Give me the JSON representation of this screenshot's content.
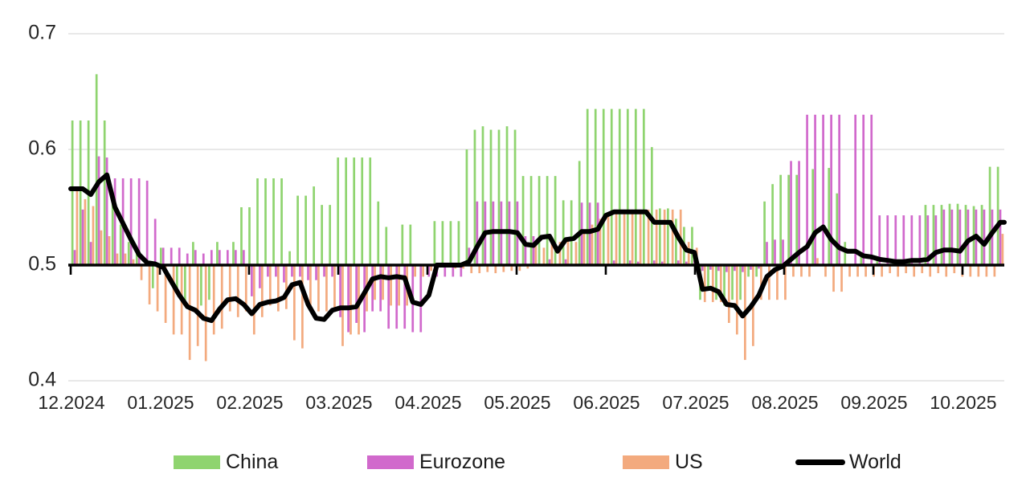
{
  "chart_data": {
    "type": "bar+line",
    "title": "",
    "y_axis": {
      "min": 0.4,
      "max": 0.7,
      "baseline": 0.5,
      "tick_labels": [
        "0.7",
        "0.6",
        "0.5",
        "0.4"
      ],
      "tick_values": [
        0.7,
        0.6,
        0.5,
        0.4
      ],
      "gridlines": [
        0.7,
        0.6,
        0.4
      ],
      "gridline_color": "#D9D9D9"
    },
    "x_axis": {
      "tick_labels": [
        "12.2024",
        "01.2025",
        "02.2025",
        "03.2025",
        "04.2025",
        "05.2025",
        "06.2025",
        "07.2025",
        "08.2025",
        "09.2025",
        "10.2025"
      ]
    },
    "legend": {
      "position": "bottom",
      "items": [
        "China",
        "Eurozone",
        "US",
        "World"
      ]
    },
    "series": [
      {
        "name": "China",
        "type": "bar",
        "color": "#8FD46F",
        "values": [
          0.625,
          0.625,
          0.625,
          0.665,
          0.625,
          0.553,
          0.535,
          0.52,
          0.515,
          null,
          0.48,
          0.515,
          null,
          0.475,
          0.465,
          0.52,
          0.465,
          0.47,
          0.52,
          null,
          0.52,
          0.55,
          0.55,
          0.575,
          0.575,
          0.575,
          0.575,
          0.512,
          0.56,
          0.56,
          0.568,
          0.552,
          0.552,
          0.593,
          0.593,
          0.593,
          0.593,
          0.593,
          0.555,
          0.533,
          null,
          0.535,
          0.535,
          null,
          null,
          0.538,
          0.538,
          0.538,
          0.538,
          0.6,
          0.617,
          0.62,
          0.617,
          0.617,
          0.62,
          0.617,
          0.577,
          0.577,
          0.577,
          0.577,
          0.577,
          0.556,
          0.556,
          0.59,
          0.635,
          0.635,
          0.635,
          0.635,
          0.635,
          0.635,
          0.635,
          0.635,
          0.602,
          0.549,
          0.549,
          0.54,
          0.533,
          0.533,
          0.47,
          0.48,
          0.47,
          0.465,
          0.47,
          0.47,
          0.49,
          0.49,
          0.555,
          0.57,
          0.578,
          0.578,
          0.578,
          null,
          0.583,
          null,
          0.584,
          0.562,
          0.52,
          null,
          0.51,
          null,
          0.505,
          null,
          0.505,
          null,
          0.505,
          null,
          0.552,
          0.552,
          0.552,
          0.553,
          0.553,
          0.552,
          0.551,
          0.552,
          0.585,
          0.585
        ]
      },
      {
        "name": "Eurozone",
        "type": "bar",
        "color": "#D169CC",
        "values": [
          0.513,
          0.548,
          0.52,
          0.594,
          0.593,
          0.575,
          0.575,
          0.575,
          0.575,
          0.573,
          0.54,
          0.515,
          0.515,
          0.515,
          0.51,
          0.513,
          0.51,
          0.513,
          0.513,
          0.513,
          0.513,
          0.513,
          0.473,
          0.48,
          0.49,
          0.49,
          0.485,
          0.49,
          0.49,
          0.487,
          0.487,
          0.49,
          0.49,
          0.455,
          0.442,
          0.45,
          0.442,
          0.46,
          0.46,
          0.445,
          0.445,
          0.445,
          0.442,
          0.442,
          0.49,
          0.49,
          0.49,
          0.49,
          0.49,
          0.515,
          0.555,
          0.555,
          0.555,
          0.555,
          0.555,
          0.555,
          0.525,
          0.525,
          null,
          0.505,
          null,
          0.505,
          null,
          0.554,
          0.554,
          0.554,
          null,
          0.504,
          null,
          0.504,
          0.503,
          null,
          0.504,
          0.503,
          null,
          0.504,
          0.503,
          0.504,
          0.495,
          0.496,
          0.495,
          0.494,
          0.495,
          0.494,
          0.496,
          0.497,
          0.52,
          0.522,
          0.522,
          0.59,
          0.59,
          0.63,
          0.63,
          0.63,
          0.63,
          0.63,
          null,
          0.63,
          0.63,
          0.63,
          0.543,
          0.543,
          0.543,
          0.543,
          0.543,
          0.543,
          0.543,
          0.543,
          0.548,
          0.548,
          0.548,
          0.548,
          0.548,
          0.548,
          0.548,
          0.548
        ]
      },
      {
        "name": "US",
        "type": "bar",
        "color": "#F3AA7E",
        "values": [
          0.567,
          0.557,
          0.551,
          0.53,
          0.525,
          0.51,
          0.51,
          0.505,
          0.487,
          0.466,
          0.46,
          0.45,
          0.44,
          0.44,
          0.418,
          0.43,
          0.417,
          0.44,
          0.445,
          0.46,
          0.455,
          0.46,
          0.44,
          0.455,
          0.465,
          0.46,
          0.462,
          0.435,
          0.428,
          0.46,
          0.46,
          0.46,
          0.46,
          0.43,
          0.44,
          0.44,
          0.46,
          0.47,
          0.47,
          0.465,
          0.465,
          0.465,
          0.49,
          0.49,
          0.495,
          0.498,
          0.498,
          0.497,
          0.497,
          0.493,
          0.493,
          0.494,
          0.493,
          0.494,
          0.495,
          0.495,
          0.497,
          0.52,
          0.515,
          0.52,
          0.52,
          0.522,
          0.52,
          0.53,
          0.535,
          0.54,
          0.545,
          0.548,
          0.548,
          0.548,
          0.548,
          0.548,
          0.548,
          0.548,
          0.548,
          0.548,
          0.52,
          0.515,
          0.468,
          0.468,
          0.468,
          0.45,
          0.44,
          0.418,
          0.43,
          0.47,
          0.47,
          0.47,
          0.47,
          0.49,
          0.49,
          0.49,
          0.506,
          0.49,
          0.477,
          0.477,
          0.49,
          0.49,
          0.49,
          0.49,
          0.49,
          0.493,
          0.49,
          0.493,
          0.49,
          0.493,
          0.49,
          0.493,
          0.49,
          0.493,
          0.49,
          0.49,
          0.49,
          0.49,
          0.49,
          0.527
        ]
      },
      {
        "name": "World",
        "type": "line",
        "color": "#000000",
        "values": [
          0.566,
          0.566,
          0.561,
          0.572,
          0.578,
          0.55,
          0.536,
          0.522,
          0.509,
          0.502,
          0.501,
          0.498,
          0.486,
          0.474,
          0.464,
          0.461,
          0.454,
          0.452,
          0.462,
          0.47,
          0.471,
          0.466,
          0.458,
          0.466,
          0.468,
          0.469,
          0.472,
          0.483,
          0.485,
          0.466,
          0.454,
          0.453,
          0.461,
          0.463,
          0.463,
          0.464,
          0.476,
          0.488,
          0.49,
          0.489,
          0.49,
          0.489,
          0.468,
          0.466,
          0.474,
          0.5,
          0.5,
          0.5,
          0.5,
          0.503,
          0.516,
          0.528,
          0.529,
          0.529,
          0.529,
          0.528,
          0.518,
          0.517,
          0.524,
          0.525,
          0.512,
          0.522,
          0.523,
          0.529,
          0.529,
          0.531,
          0.543,
          0.546,
          0.546,
          0.546,
          0.546,
          0.546,
          0.537,
          0.537,
          0.537,
          0.524,
          0.513,
          0.511,
          0.479,
          0.48,
          0.477,
          0.466,
          0.465,
          0.456,
          0.464,
          0.474,
          0.49,
          0.496,
          0.499,
          0.505,
          0.511,
          0.516,
          0.528,
          0.533,
          0.522,
          0.515,
          0.512,
          0.512,
          0.508,
          0.507,
          0.505,
          0.504,
          0.503,
          0.503,
          0.504,
          0.504,
          0.505,
          0.511,
          0.513,
          0.513,
          0.512,
          0.521,
          0.525,
          0.518,
          0.528,
          0.537
        ]
      }
    ]
  }
}
